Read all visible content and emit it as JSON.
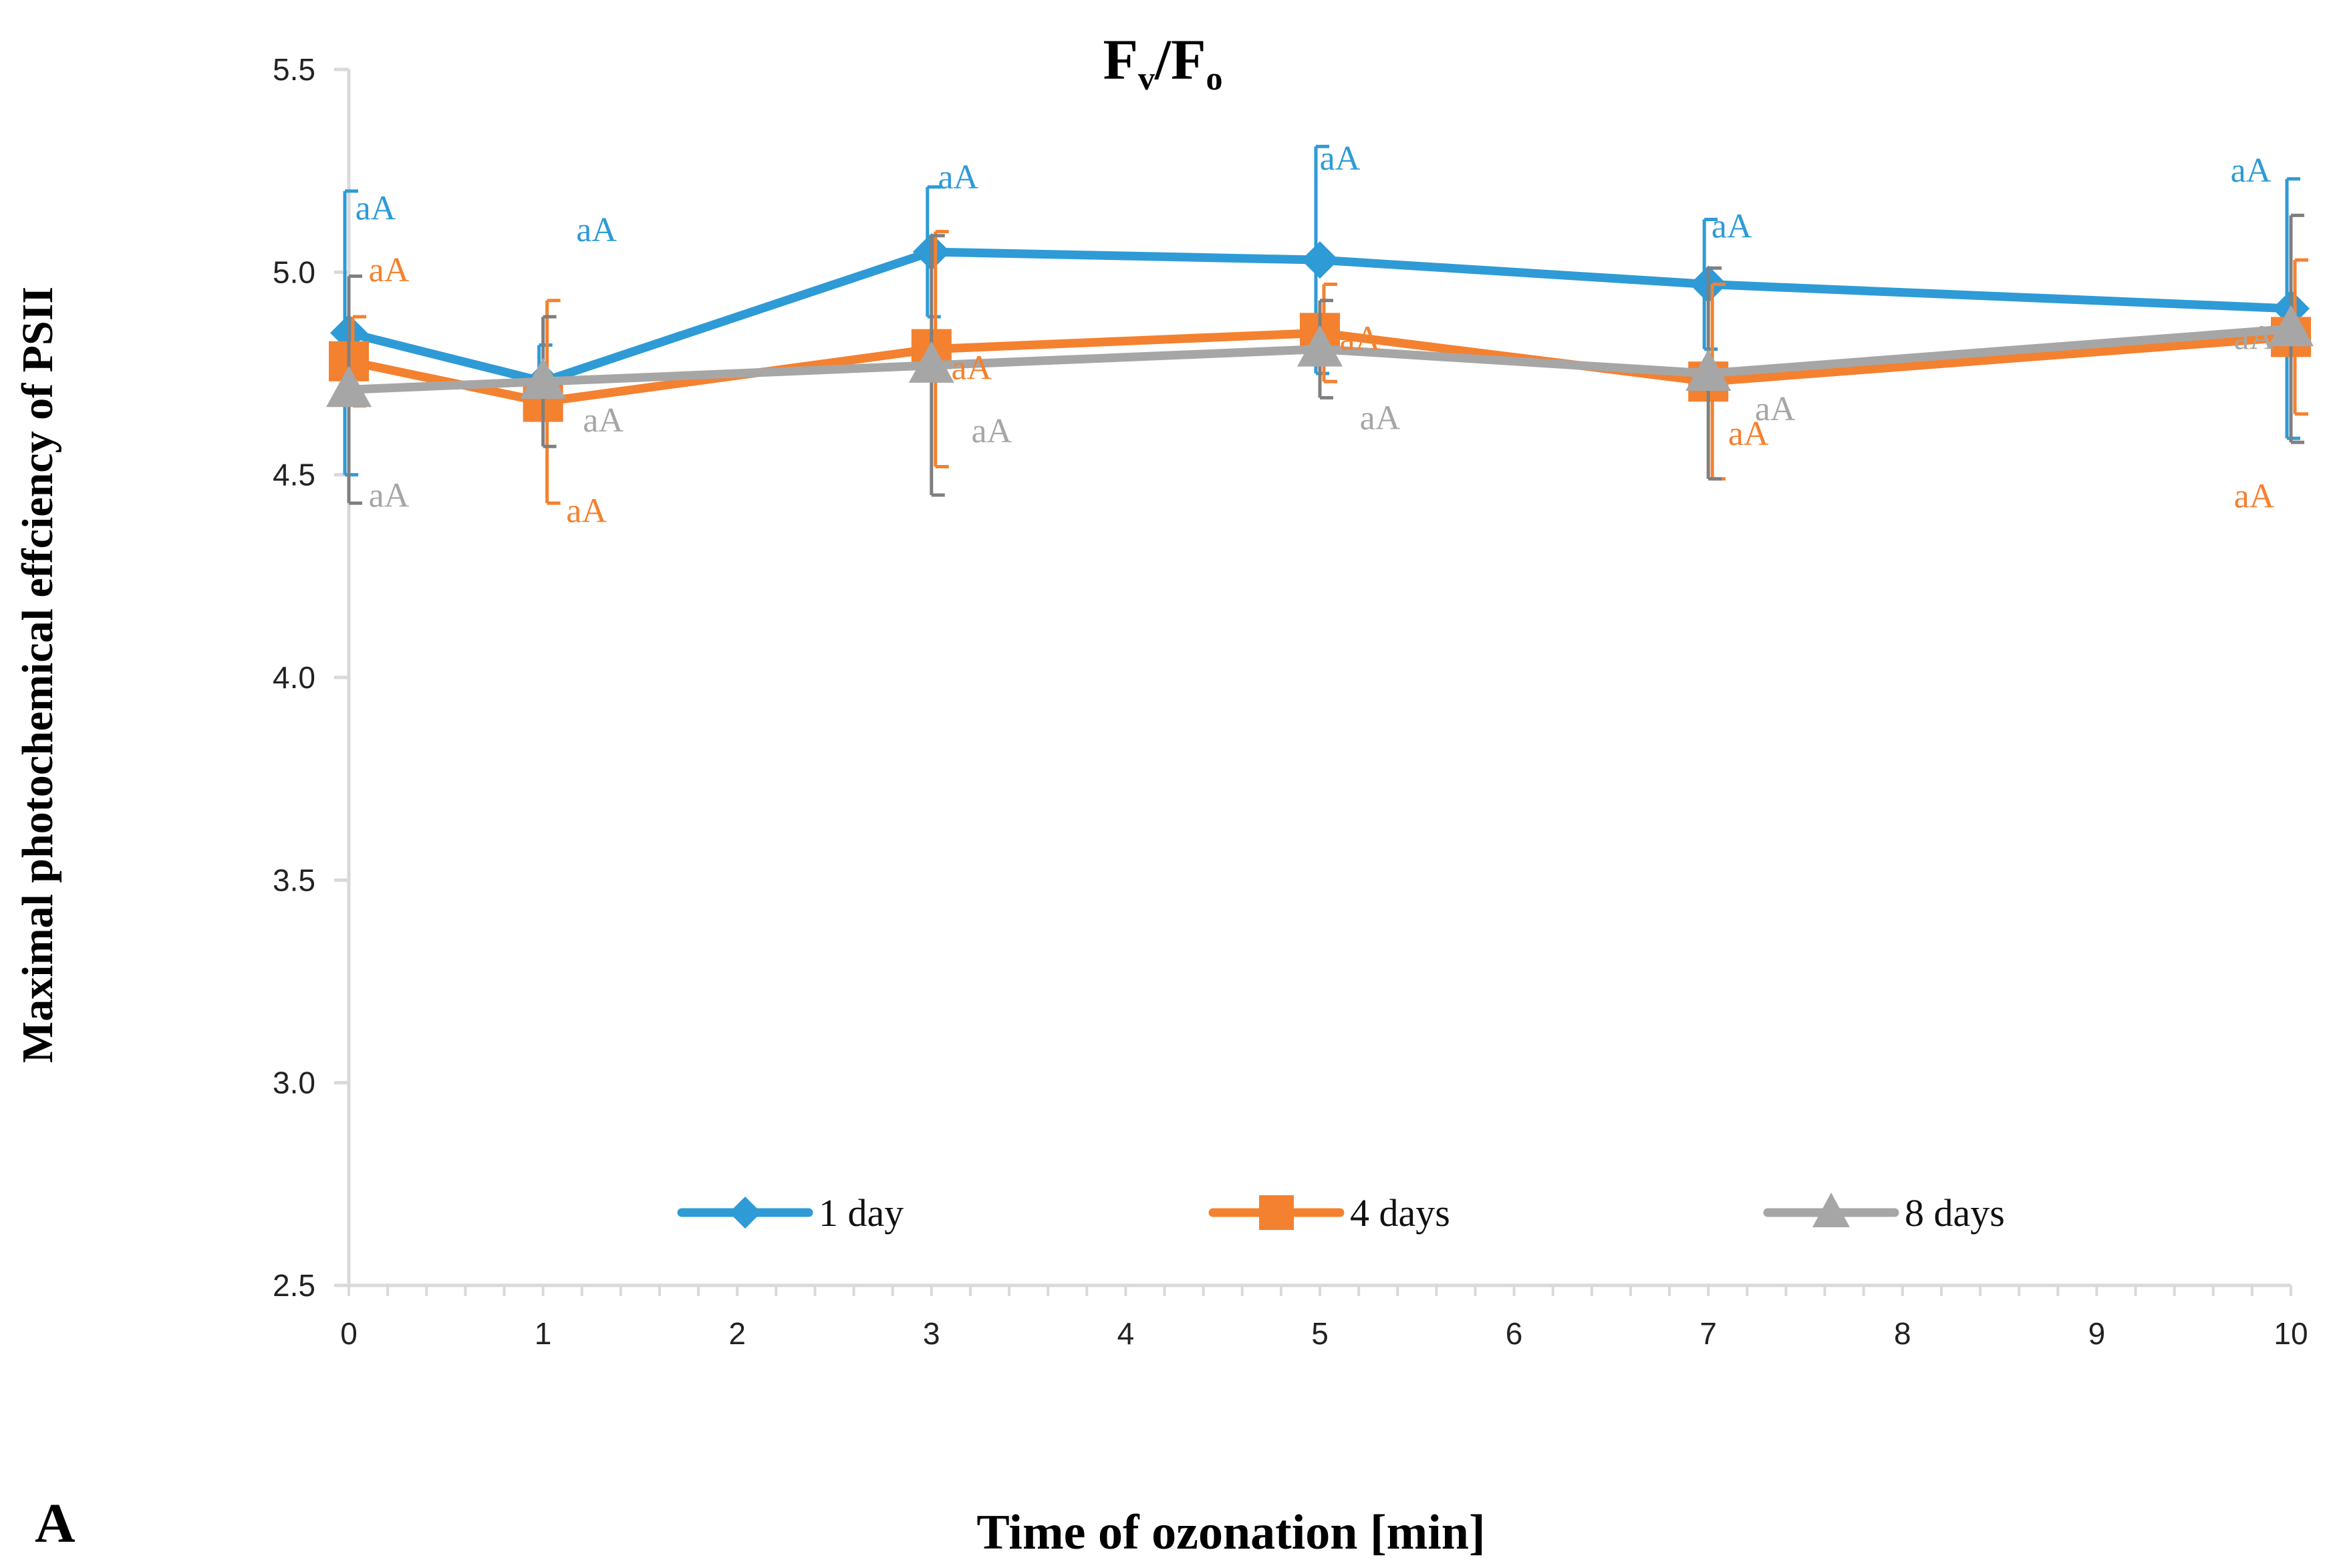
{
  "chart_data": {
    "type": "line",
    "title_main": "F",
    "title_sub_v": "v",
    "title_slash": "/F",
    "title_sub_o": "o",
    "title": "Fv/Fo",
    "xlabel": "Time of ozonation [min]",
    "ylabel": "Maximal photochemical effciency of PSII",
    "panel_label": "A",
    "xlim": [
      0,
      10
    ],
    "ylim": [
      2.5,
      5.5
    ],
    "x_ticks": [
      "0",
      "1",
      "2",
      "3",
      "4",
      "5",
      "6",
      "7",
      "8",
      "9",
      "10"
    ],
    "y_ticks": [
      "2.5",
      "3.0",
      "3.5",
      "4.0",
      "4.5",
      "5.0",
      "5.5"
    ],
    "x": [
      0,
      1,
      3,
      5,
      7,
      10
    ],
    "legend_position": "bottom-center",
    "series": [
      {
        "name": "1 day",
        "color": "#2E9BD6",
        "marker": "diamond",
        "values": [
          4.85,
          4.73,
          5.05,
          5.03,
          4.97,
          4.91
        ],
        "error": [
          0.35,
          0.09,
          0.16,
          0.28,
          0.16,
          0.32
        ],
        "labels": [
          "aA",
          "aA",
          "aA",
          "aA",
          "aA",
          "aA"
        ]
      },
      {
        "name": "4 days",
        "color": "#F4812F",
        "marker": "square",
        "values": [
          4.78,
          4.68,
          4.81,
          4.85,
          4.73,
          4.84
        ],
        "error": [
          0.11,
          0.25,
          0.29,
          0.12,
          0.24,
          0.19
        ],
        "labels": [
          "aA",
          "aA",
          "aA",
          "aA",
          "aA",
          "aA"
        ]
      },
      {
        "name": "8 days",
        "color": "#A6A6A6",
        "marker": "triangle",
        "values": [
          4.71,
          4.73,
          4.77,
          4.81,
          4.75,
          4.86
        ],
        "error": [
          0.28,
          0.16,
          0.32,
          0.12,
          0.26,
          0.28
        ],
        "labels": [
          "aA",
          "aA",
          "aA",
          "aA",
          "aA",
          "aA"
        ]
      }
    ]
  }
}
